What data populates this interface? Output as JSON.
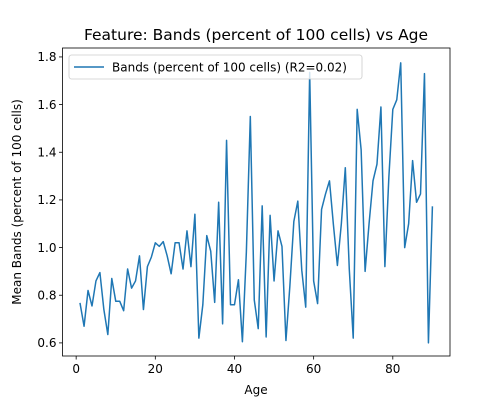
{
  "chart_data": {
    "type": "line",
    "title": "Feature: Bands (percent of 100 cells) vs Age",
    "xlabel": "Age",
    "ylabel": "Mean Bands (percent of 100 cells)",
    "xlim": [
      -3.45,
      94.45
    ],
    "ylim": [
      0.545,
      1.8375
    ],
    "xticks": [
      0,
      20,
      40,
      60,
      80
    ],
    "yticks": [
      0.6,
      0.8,
      1.0,
      1.2,
      1.4,
      1.6,
      1.8
    ],
    "xtick_labels": [
      "0",
      "20",
      "40",
      "60",
      "80"
    ],
    "ytick_labels": [
      "0.6",
      "0.8",
      "1.0",
      "1.2",
      "1.4",
      "1.6",
      "1.8"
    ],
    "grid": false,
    "legend_position": "top-left",
    "series": [
      {
        "name": "Bands (percent of 100 cells) (R2=0.02)",
        "color": "#1f77b4",
        "x": [
          1,
          2,
          3,
          4,
          5,
          6,
          7,
          8,
          9,
          10,
          11,
          12,
          13,
          14,
          15,
          16,
          17,
          18,
          19,
          20,
          21,
          22,
          23,
          24,
          25,
          26,
          27,
          28,
          29,
          30,
          31,
          32,
          33,
          34,
          35,
          36,
          37,
          38,
          39,
          40,
          41,
          42,
          43,
          44,
          45,
          46,
          47,
          48,
          49,
          50,
          51,
          52,
          53,
          54,
          55,
          56,
          57,
          58,
          59,
          60,
          61,
          62,
          63,
          64,
          65,
          66,
          67,
          68,
          69,
          70,
          71,
          72,
          73,
          74,
          75,
          76,
          77,
          78,
          79,
          80,
          81,
          82,
          83,
          84,
          85,
          86,
          87,
          88,
          89,
          90
        ],
        "y": [
          0.765,
          0.67,
          0.82,
          0.755,
          0.86,
          0.895,
          0.74,
          0.635,
          0.87,
          0.775,
          0.775,
          0.735,
          0.91,
          0.83,
          0.86,
          0.965,
          0.74,
          0.92,
          0.96,
          1.02,
          1.005,
          1.025,
          0.965,
          0.89,
          1.02,
          1.02,
          0.91,
          1.07,
          0.92,
          1.14,
          0.62,
          0.76,
          1.05,
          0.985,
          0.77,
          1.19,
          0.68,
          1.45,
          0.76,
          0.76,
          0.865,
          0.605,
          0.98,
          1.55,
          0.78,
          0.66,
          1.175,
          0.625,
          1.135,
          0.86,
          1.07,
          1.005,
          0.61,
          0.84,
          1.11,
          1.195,
          0.905,
          0.75,
          1.735,
          0.86,
          0.765,
          1.16,
          1.225,
          1.28,
          1.095,
          0.925,
          1.1,
          1.335,
          0.91,
          0.62,
          1.58,
          1.41,
          0.9,
          1.1,
          1.28,
          1.35,
          1.59,
          0.92,
          1.295,
          1.58,
          1.62,
          1.775,
          1.0,
          1.1,
          1.365,
          1.19,
          1.225,
          1.73,
          0.6,
          1.17
        ]
      }
    ]
  }
}
